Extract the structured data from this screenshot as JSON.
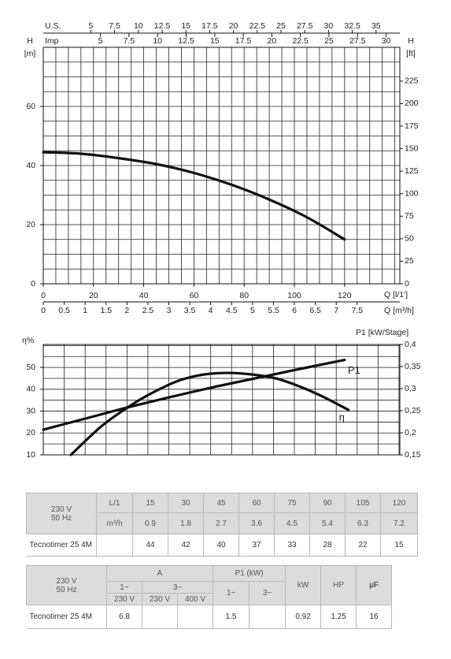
{
  "chart_data": [
    {
      "type": "line",
      "y_label": "H",
      "y_unit": "[m]",
      "y2_label": "H",
      "y2_unit": "[ft]",
      "x_label": "Q [l/1']",
      "x2_label": "Q [m³/h]",
      "xlim": [
        0,
        142
      ],
      "xticks": [
        0,
        20,
        40,
        60,
        80,
        100,
        120
      ],
      "xgrid": [
        0,
        5,
        10,
        15,
        20,
        25,
        30,
        35,
        40,
        45,
        50,
        55,
        60,
        65,
        70,
        75,
        80,
        85,
        90,
        95,
        100,
        105,
        110,
        115,
        120,
        125,
        130,
        135,
        140
      ],
      "x2lim": [
        0,
        8.52
      ],
      "x2ticks": [
        0,
        0.5,
        1,
        1.5,
        2,
        2.5,
        3,
        3.5,
        4,
        4.5,
        5,
        5.5,
        6,
        6.5,
        7,
        7.5
      ],
      "top_axes": [
        {
          "label": "U.S.",
          "lim": [
            0,
            37.5
          ],
          "ticks": [
            5,
            7.5,
            10,
            12.5,
            15,
            17.5,
            20,
            22.5,
            25,
            27.5,
            30,
            32.5,
            35
          ]
        },
        {
          "label": "Imp",
          "lim": [
            0,
            31.2
          ],
          "ticks": [
            5,
            7.5,
            10,
            12.5,
            15,
            17.5,
            20,
            22.5,
            25,
            27.5,
            30
          ]
        }
      ],
      "ylim": [
        0,
        80
      ],
      "yticks": [
        0,
        20,
        40,
        60
      ],
      "ygrid": [
        0,
        5,
        10,
        15,
        20,
        25,
        30,
        35,
        40,
        45,
        50,
        55,
        60,
        65,
        70,
        75,
        80
      ],
      "y2lim": [
        0,
        262.5
      ],
      "y2ticks": [
        0,
        25,
        50,
        75,
        100,
        125,
        150,
        175,
        200,
        225
      ],
      "x": [
        0,
        15,
        30,
        45,
        60,
        75,
        90,
        105,
        120
      ],
      "values": [
        44.5,
        44,
        42.5,
        40.5,
        37.5,
        33.5,
        28.5,
        22.5,
        15
      ],
      "color": "#111111"
    },
    {
      "type": "line",
      "y_label": "η%",
      "y2_label": "P1 [kW/Stage]",
      "xlim": [
        0,
        8.52
      ],
      "xgrid": [
        0,
        0.5,
        1,
        1.5,
        2,
        2.5,
        3,
        3.5,
        4,
        4.5,
        5,
        5.5,
        6,
        6.5,
        7,
        7.5,
        8,
        8.5
      ],
      "ylim": [
        10,
        60.5
      ],
      "yticks": [
        10,
        20,
        30,
        40,
        50
      ],
      "ygrid": [
        10,
        15,
        20,
        25,
        30,
        35,
        40,
        45,
        50,
        55,
        60
      ],
      "y2lim": [
        0.15,
        0.4
      ],
      "y2ticks": [
        {
          "value": 0.15,
          "label": "0,15"
        },
        {
          "value": 0.2,
          "label": "0,2"
        },
        {
          "value": 0.25,
          "label": "0,25"
        },
        {
          "value": 0.3,
          "label": "0,3"
        },
        {
          "value": 0.35,
          "label": "0,35"
        },
        {
          "value": 0.4,
          "label": "0,4"
        }
      ],
      "series": [
        {
          "name": "η",
          "color": "#111111",
          "x": [
            0.66,
            1.41,
            2.16,
            2.73,
            3.29,
            3.85,
            4.42,
            4.98,
            5.55,
            6.11,
            6.67,
            7.29
          ],
          "values": [
            10,
            23.4,
            33.5,
            39.6,
            44.3,
            46.8,
            47.5,
            46.8,
            45,
            41.4,
            36.7,
            30.6
          ]
        },
        {
          "name": "P1",
          "color": "#111111",
          "axis": "y2",
          "x": [
            0,
            1,
            2,
            3,
            4,
            5,
            6,
            7.2
          ],
          "values": [
            0.207,
            0.232,
            0.257,
            0.28,
            0.302,
            0.322,
            0.342,
            0.365
          ]
        }
      ]
    }
  ],
  "tables": [
    {
      "header_lines": [
        "230 V",
        "50 Hz"
      ],
      "flow_units": [
        "L/1",
        "m³/h"
      ],
      "flow_lmin": [
        15,
        30,
        45,
        60,
        75,
        90,
        105,
        120
      ],
      "flow_m3h": [
        0.9,
        1.8,
        2.7,
        3.6,
        4.5,
        5.4,
        6.3,
        7.2
      ],
      "model": "Tecnotimer 25 4M",
      "head_m": [
        44,
        42,
        40,
        37,
        33,
        28,
        22,
        15
      ]
    },
    {
      "header_lines": [
        "230 V",
        "50 Hz"
      ],
      "current_label": "A",
      "current_phases": [
        "1~",
        "3~"
      ],
      "voltages": [
        "230 V",
        "230 V",
        "400 V"
      ],
      "p1_label": "P1 (kW)",
      "p1_phases": [
        "1~",
        "3~"
      ],
      "kw_label": "kW",
      "hp_label": "HP",
      "uf_label": "µF",
      "model": "Tecnotimer 25 4M",
      "current_1ph_230": 6.8,
      "p1_1ph": 1.5,
      "kw": 0.92,
      "hp": 1.25,
      "uf": 16
    }
  ]
}
